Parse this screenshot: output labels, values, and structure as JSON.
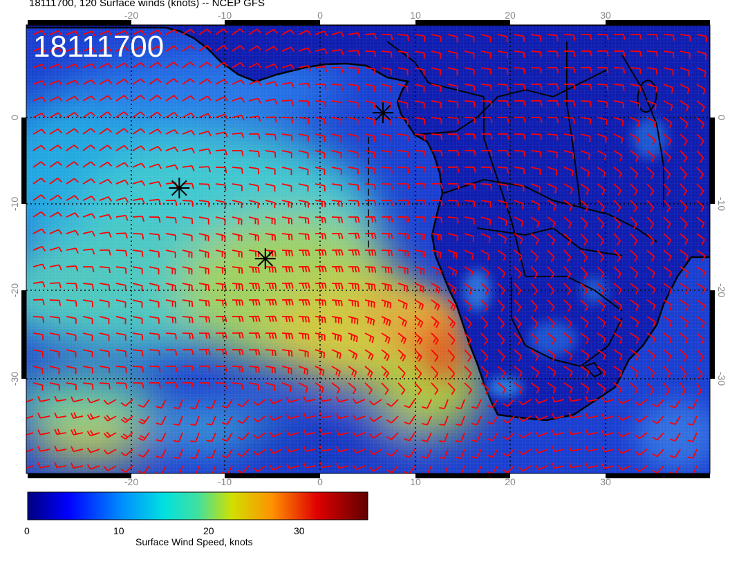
{
  "title": "18111700, 120 Surface winds (knots) -- NCEP GFS",
  "stamp": "18111700",
  "colorbar": {
    "label": "Surface Wind Speed, knots",
    "ticks": [
      "0",
      "10",
      "20",
      "30"
    ],
    "range": [
      0,
      38
    ],
    "colors": [
      "#00008f",
      "#0000ff",
      "#0080ff",
      "#00ffff",
      "#80ff80",
      "#ffff00",
      "#ff8000",
      "#ff0000",
      "#800000"
    ]
  },
  "axes": {
    "lon_top": [
      "-20",
      "-10",
      "0",
      "10",
      "20",
      "30"
    ],
    "lon_bottom": [
      "-20",
      "-10",
      "0",
      "10",
      "20",
      "30"
    ],
    "lat_left": [
      "0",
      "-10",
      "-20",
      "-30"
    ],
    "lat_right": [
      "0",
      "-10",
      "-20",
      "-30"
    ],
    "lon_range": [
      -30.5,
      41
    ],
    "lat_range": [
      -40,
      9.5
    ]
  },
  "barb_color": "#ff0000",
  "land_color": "#0c1aa8",
  "markers": [
    {
      "name": "storm-marker",
      "lon": -14.5,
      "lat": -8.5
    },
    {
      "name": "storm-marker",
      "lon": -5.5,
      "lat": -16.3
    },
    {
      "name": "storm-marker",
      "lon": 6.8,
      "lat": -0.2
    }
  ]
}
